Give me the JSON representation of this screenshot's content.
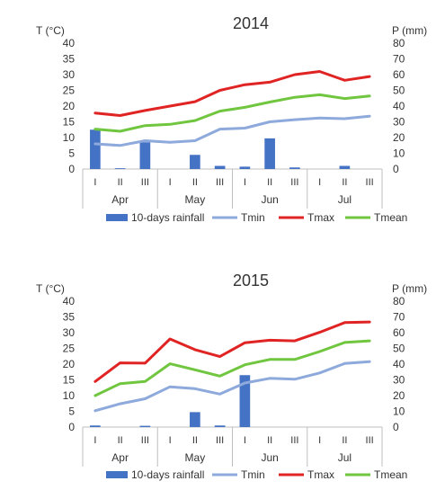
{
  "chart_data": [
    {
      "type": "bar+line",
      "title": "2014",
      "ylabel_left": "T (°C)",
      "ylabel_right": "P (mm)",
      "ylim_left": [
        0,
        40
      ],
      "ylim_right": [
        0,
        80
      ],
      "yticks_left": [
        0,
        5,
        10,
        15,
        20,
        25,
        30,
        35,
        40
      ],
      "yticks_right": [
        0,
        10,
        20,
        30,
        40,
        50,
        60,
        70,
        80
      ],
      "categories": [
        "I",
        "II",
        "III",
        "I",
        "II",
        "III",
        "I",
        "II",
        "III",
        "I",
        "II",
        "III"
      ],
      "months": [
        "Apr",
        "May",
        "Jun",
        "Jul"
      ],
      "bars": {
        "name": "10-days rainfall",
        "axis": "right",
        "color": "#4472C4",
        "values": [
          25,
          0.5,
          17,
          0,
          9,
          2,
          1.5,
          19.5,
          1,
          0,
          2,
          0
        ]
      },
      "series": [
        {
          "name": "Tmin",
          "color": "#8EA9DB",
          "values": [
            8,
            7.5,
            9,
            8.5,
            9,
            12.7,
            13,
            15,
            15.7,
            16.2,
            16,
            16.8
          ]
        },
        {
          "name": "Tmax",
          "color": "#E02424",
          "values": [
            17.8,
            17,
            18.6,
            20,
            21.4,
            25,
            26.8,
            27.6,
            30,
            31,
            28.2,
            29.4
          ]
        },
        {
          "name": "Tmean",
          "color": "#70C63F",
          "values": [
            12.7,
            12,
            13.8,
            14.2,
            15.4,
            18.4,
            19.6,
            21.3,
            22.8,
            23.6,
            22.4,
            23.2
          ]
        }
      ]
    },
    {
      "type": "bar+line",
      "title": "2015",
      "ylabel_left": "T (°C)",
      "ylabel_right": "P (mm)",
      "ylim_left": [
        0,
        40
      ],
      "ylim_right": [
        0,
        80
      ],
      "yticks_left": [
        0,
        5,
        10,
        15,
        20,
        25,
        30,
        35,
        40
      ],
      "yticks_right": [
        0,
        10,
        20,
        30,
        40,
        50,
        60,
        70,
        80
      ],
      "categories": [
        "I",
        "II",
        "III",
        "I",
        "II",
        "III",
        "I",
        "II",
        "III",
        "I",
        "II",
        "III"
      ],
      "months": [
        "Apr",
        "May",
        "Jun",
        "Jul"
      ],
      "bars": {
        "name": "10-days rainfall",
        "axis": "right",
        "color": "#4472C4",
        "values": [
          1,
          0,
          0.8,
          0,
          9.5,
          1,
          33,
          0,
          0,
          0,
          0,
          0
        ]
      },
      "series": [
        {
          "name": "Tmin",
          "color": "#8EA9DB",
          "values": [
            5.2,
            7.4,
            9,
            12.8,
            12.2,
            10.5,
            14,
            15.5,
            15.2,
            17.2,
            20.2,
            20.8
          ]
        },
        {
          "name": "Tmax",
          "color": "#E02424",
          "values": [
            14.5,
            20.4,
            20.3,
            28,
            24.6,
            22.4,
            26.8,
            27.6,
            27.4,
            30.1,
            33.2,
            33.4
          ]
        },
        {
          "name": "Tmean",
          "color": "#70C63F",
          "values": [
            10,
            13.8,
            14.5,
            20.1,
            18.2,
            16.2,
            19.8,
            21.5,
            21.5,
            24,
            26.9,
            27.4
          ]
        }
      ]
    }
  ]
}
